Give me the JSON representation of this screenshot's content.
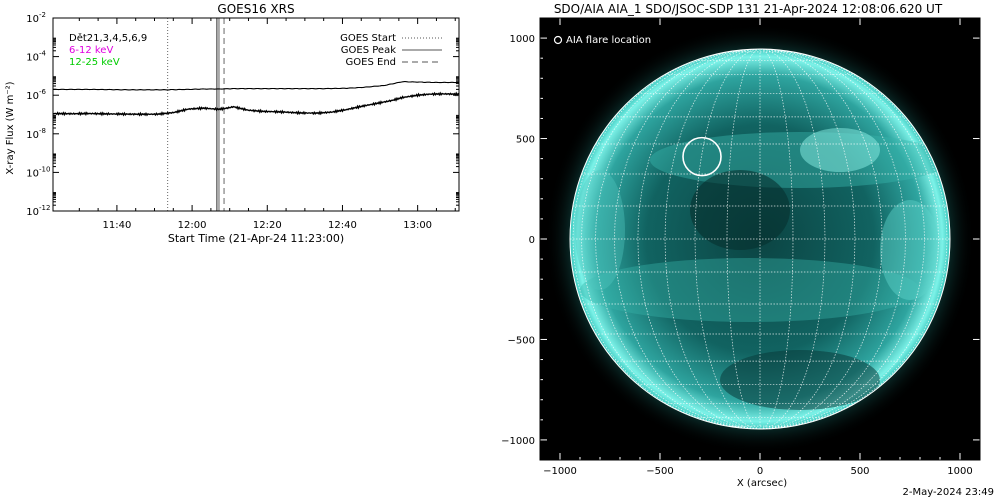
{
  "chart_data": [
    {
      "type": "line",
      "title": "GOES16 XRS",
      "xlabel": "Start Time (21-Apr-24 11:23:00)",
      "ylabel": "X-ray Flux (W m⁻²)",
      "y_scale": "log",
      "ylim_exponent": [
        -12,
        -2
      ],
      "y_ticks": [
        {
          "label": "10",
          "exp": "-12",
          "value": -12
        },
        {
          "label": "10",
          "exp": "-10",
          "value": -10
        },
        {
          "label": "10",
          "exp": "-8",
          "value": -8
        },
        {
          "label": "10",
          "exp": "-6",
          "value": -6
        },
        {
          "label": "10",
          "exp": "-4",
          "value": -4
        },
        {
          "label": "10",
          "exp": "-2",
          "value": -2
        }
      ],
      "xlim_minutes_after_start": [
        0,
        108
      ],
      "x_ticks": [
        {
          "label": "11:40",
          "value": 17
        },
        {
          "label": "12:00",
          "value": 37
        },
        {
          "label": "12:20",
          "value": 57
        },
        {
          "label": "12:40",
          "value": 77
        },
        {
          "label": "13:00",
          "value": 97
        }
      ],
      "detectors_label": "Dět21,3,4,5,6,9",
      "channels": [
        {
          "name": "6-12 keV",
          "color": "#e000e0"
        },
        {
          "name": "12-25 keV",
          "color": "#00cc00"
        }
      ],
      "legend": {
        "placement": "top-right",
        "entries": [
          {
            "name": "GOES Start",
            "style": "dotted"
          },
          {
            "name": "GOES Peak",
            "style": "solid"
          },
          {
            "name": "GOES End",
            "style": "dashed"
          }
        ]
      },
      "markers": {
        "goes_start": 30.5,
        "goes_peak": 43.5,
        "aia_time": 44,
        "goes_end": 45.5
      },
      "series": [
        {
          "name": "long",
          "x": [
            0,
            10,
            20,
            30,
            36,
            40,
            44,
            48,
            52,
            58,
            66,
            72,
            78,
            82,
            88,
            93,
            97,
            102,
            108
          ],
          "values": [
            -5.7,
            -5.7,
            -5.72,
            -5.72,
            -5.7,
            -5.68,
            -5.68,
            -5.66,
            -5.66,
            -5.66,
            -5.66,
            -5.66,
            -5.64,
            -5.6,
            -5.5,
            -5.3,
            -5.32,
            -5.34,
            -5.34
          ]
        },
        {
          "name": "short",
          "x": [
            0,
            5,
            10,
            15,
            20,
            25,
            28,
            32,
            36,
            40,
            42,
            44,
            46,
            48,
            52,
            56,
            60,
            66,
            70,
            74,
            78,
            82,
            86,
            90,
            93,
            97,
            100,
            104,
            108
          ],
          "values": [
            -6.95,
            -6.96,
            -6.95,
            -6.97,
            -6.98,
            -6.99,
            -6.98,
            -6.9,
            -6.72,
            -6.67,
            -6.7,
            -6.73,
            -6.68,
            -6.6,
            -6.78,
            -6.84,
            -6.86,
            -6.92,
            -6.93,
            -6.88,
            -6.75,
            -6.58,
            -6.43,
            -6.28,
            -6.12,
            -6.0,
            -5.95,
            -5.93,
            -5.95
          ]
        }
      ]
    },
    {
      "type": "scatter",
      "title": "SDO/AIA AIA_1 SDO/JSOC-SDP 131 21-Apr-2024 12:08:06.620 UT",
      "xlabel": "X (arcsec)",
      "ylabel": "",
      "xlim": [
        -1100,
        1100
      ],
      "ylim": [
        -1100,
        1100
      ],
      "x_ticks": [
        -1000,
        -500,
        0,
        500,
        1000
      ],
      "y_ticks": [
        -1000,
        -500,
        0,
        500,
        1000
      ],
      "legend_label": "AIA flare location",
      "flare_location": {
        "x": -290,
        "y": 410,
        "radius": 95
      },
      "solar_radius": 950,
      "colormap_accent": "#3fe8d8"
    }
  ],
  "footer": {
    "timestamp": "2-May-2024 23:49"
  }
}
